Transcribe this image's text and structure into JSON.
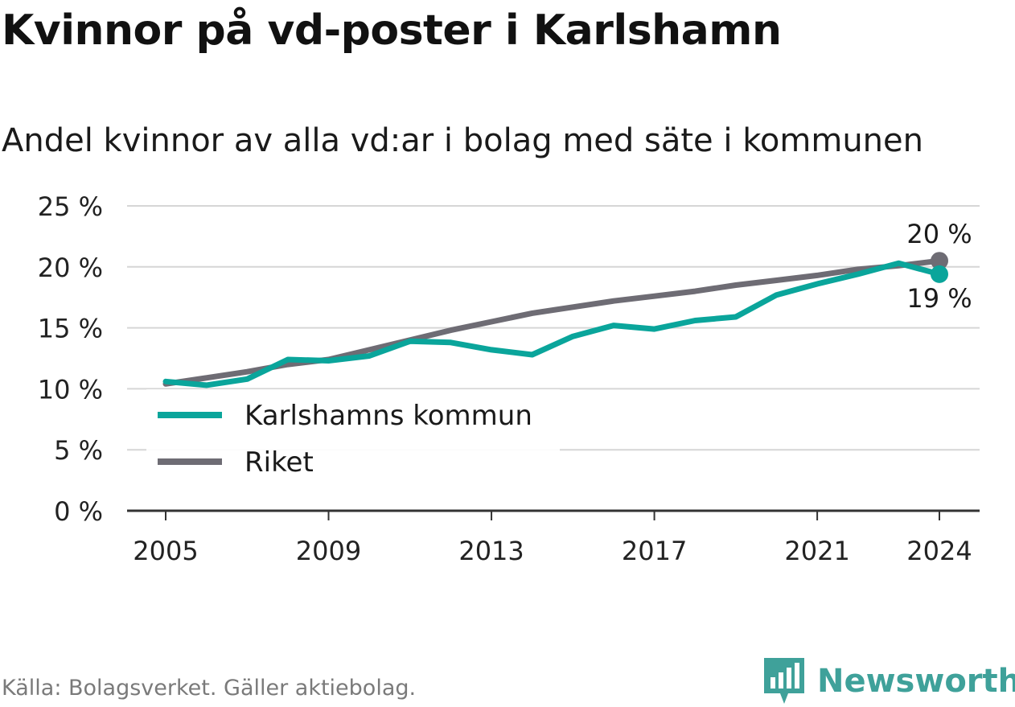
{
  "header": {
    "title": "Kvinnor på vd-poster i Karlshamn",
    "subtitle": "Andel kvinnor av alla vd:ar i bolag med säte i kommunen"
  },
  "footer": {
    "source": "Källa: Bolagsverket. Gäller aktiebolag.",
    "brand": "Newsworthy",
    "brand_icon": "newsworthy-logo-icon"
  },
  "colors": {
    "karlshamn": "#0aa59b",
    "riket": "#6e6c74",
    "grid": "#d6d6d6",
    "axis": "#333333",
    "brand": "#3fa19a"
  },
  "chart_data": {
    "type": "line",
    "x": [
      2005,
      2006,
      2007,
      2008,
      2009,
      2010,
      2011,
      2012,
      2013,
      2014,
      2015,
      2016,
      2017,
      2018,
      2019,
      2020,
      2021,
      2022,
      2023,
      2024
    ],
    "series": [
      {
        "name": "Karlshamns kommun",
        "values": [
          10.6,
          10.3,
          10.8,
          12.4,
          12.3,
          12.7,
          13.9,
          13.8,
          13.2,
          12.8,
          14.3,
          15.2,
          14.9,
          15.6,
          15.9,
          17.7,
          18.6,
          19.4,
          20.3,
          19.4
        ]
      },
      {
        "name": "Riket",
        "values": [
          10.4,
          10.9,
          11.4,
          12.0,
          12.4,
          13.2,
          14.0,
          14.8,
          15.5,
          16.2,
          16.7,
          17.2,
          17.6,
          18.0,
          18.5,
          18.9,
          19.3,
          19.8,
          20.1,
          20.5
        ]
      }
    ],
    "xticks": [
      2005,
      2009,
      2013,
      2017,
      2021,
      2024
    ],
    "xtick_labels": [
      "2005",
      "2009",
      "2013",
      "2017",
      "2021",
      "2024"
    ],
    "yticks": [
      0,
      5,
      10,
      15,
      20,
      25
    ],
    "ytick_labels": [
      "0 %",
      "5 %",
      "10 %",
      "15 %",
      "20 %",
      "25 %"
    ],
    "ylim": [
      0,
      25
    ],
    "xlim": [
      2004,
      2025
    ],
    "end_labels": {
      "riket": "20 %",
      "karlshamn": "19 %"
    },
    "legend": [
      "Karlshamns kommun",
      "Riket"
    ],
    "legend_position": "lower-left",
    "grid": true
  }
}
